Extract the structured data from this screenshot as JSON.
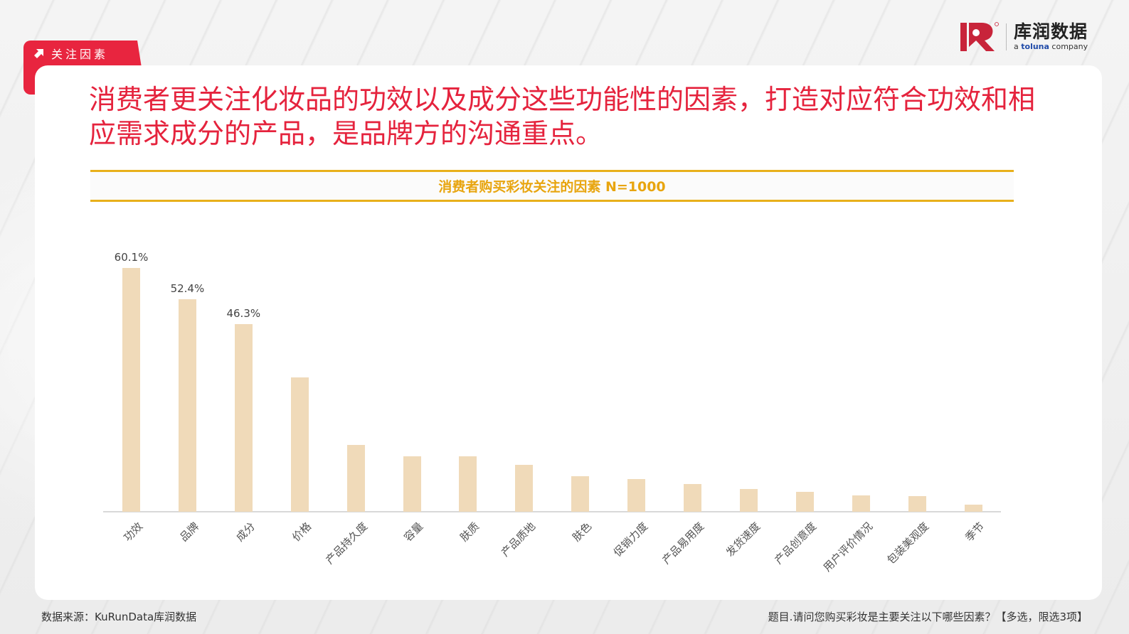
{
  "section_tab": {
    "icon": "arrow-up-right-icon",
    "label": "关注因素"
  },
  "logo": {
    "cn": "库润数据",
    "en_prefix": "a ",
    "en_brand": "toluna",
    "en_suffix": " company",
    "colors": {
      "mark": "#c8243a",
      "text": "#222222",
      "brand": "#1f4aa8"
    }
  },
  "headline": "消费者更关注化妆品的功效以及成分这些功能性的因素，打造对应符合功效和相应需求成分的产品，是品牌方的沟通重点。",
  "chart_title": "消费者购买彩妆关注的因素 N=1000",
  "colors": {
    "accent_red": "#e5233d",
    "title_gold": "#e8a50f",
    "bar": "#f0dab9",
    "rule_gold": "#e8b01b"
  },
  "chart_data": {
    "type": "bar",
    "title": "消费者购买彩妆关注的因素 N=1000",
    "xlabel": "",
    "ylabel": "",
    "unit": "%",
    "ylim": [
      0,
      65
    ],
    "grid": false,
    "legend": null,
    "categories": [
      "功效",
      "品牌",
      "成分",
      "价格",
      "产品持久度",
      "容量",
      "肤质",
      "产品质地",
      "肤色",
      "促销力度",
      "产品易用度",
      "发货速度",
      "产品创意度",
      "用户评价情况",
      "包装美观度",
      "季节"
    ],
    "values": [
      60.1,
      52.4,
      46.3,
      33.1,
      16.5,
      13.7,
      13.7,
      11.6,
      8.8,
      8.1,
      6.8,
      5.6,
      4.9,
      4.0,
      3.9,
      1.8
    ],
    "labeled_values": [
      "60.1%",
      "52.4%",
      "46.3%",
      "",
      "",
      "",
      "",
      "",
      "",
      "",
      "",
      "",
      "",
      "",
      "",
      ""
    ]
  },
  "footer": {
    "source": "数据来源：KuRunData库润数据",
    "question": "题目.请问您购买彩妆是主要关注以下哪些因素？【多选，限选3项】"
  }
}
